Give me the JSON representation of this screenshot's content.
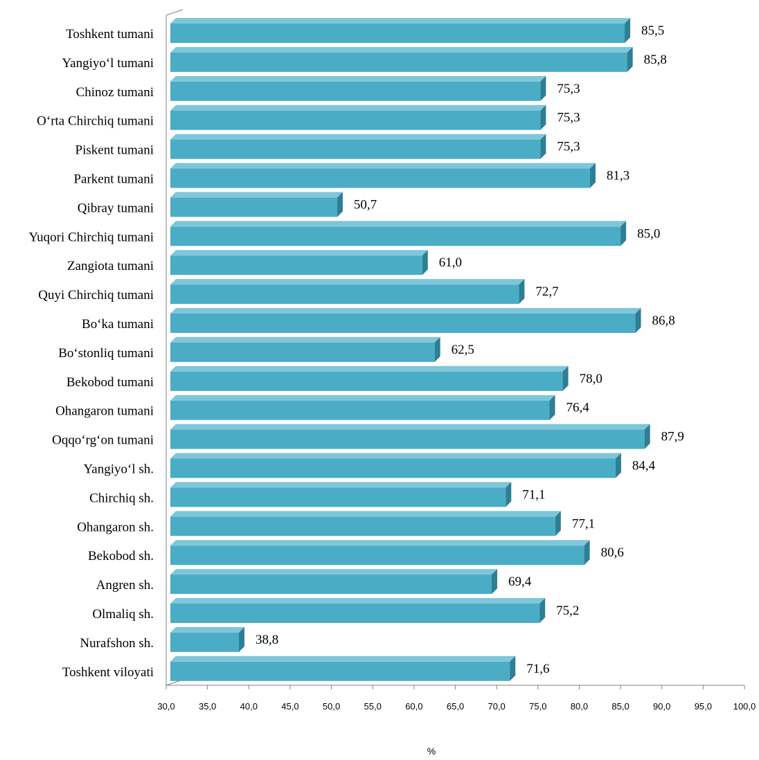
{
  "chart_data": {
    "type": "bar",
    "orientation": "horizontal",
    "categories": [
      "Toshkent tumani",
      "Yangiyo‘l tumani",
      "Chinoz tumani",
      "O‘rta Chirchiq tumani",
      "Piskent tumani",
      "Parkent tumani",
      "Qibray tumani",
      "Yuqori Chirchiq tumani",
      "Zangiota tumani",
      "Quyi Chirchiq tumani",
      "Bo‘ka tumani",
      "Bo‘stonliq tumani",
      "Bekobod tumani",
      "Ohangaron tumani",
      "Oqqo‘rg‘on tumani",
      "Yangiyo‘l sh.",
      "Chirchiq sh.",
      "Ohangaron sh.",
      "Bekobod sh.",
      "Angren sh.",
      "Olmaliq sh.",
      "Nurafshon sh.",
      "Toshkent viloyati"
    ],
    "values": [
      85.5,
      85.8,
      75.3,
      75.3,
      75.3,
      81.3,
      50.7,
      85.0,
      61.0,
      72.7,
      86.8,
      62.5,
      78.0,
      76.4,
      87.9,
      84.4,
      71.1,
      77.1,
      80.6,
      69.4,
      75.2,
      38.8,
      71.6
    ],
    "value_labels": [
      "85,5",
      "85,8",
      "75,3",
      "75,3",
      "75,3",
      "81,3",
      "50,7",
      "85,0",
      "61,0",
      "72,7",
      "86,8",
      "62,5",
      "78,0",
      "76,4",
      "87,9",
      "84,4",
      "71,1",
      "77,1",
      "80,6",
      "69,4",
      "75,2",
      "38,8",
      "71,6"
    ],
    "xlim": [
      30,
      100
    ],
    "x_ticks": [
      "30,0",
      "35,0",
      "40,0",
      "45,0",
      "50,0",
      "55,0",
      "60,0",
      "65,0",
      "70,0",
      "75,0",
      "80,0",
      "85,0",
      "90,0",
      "95,0",
      "100,0"
    ],
    "xlabel": "%",
    "ylabel": "",
    "title": "",
    "grid": false,
    "legend": "none",
    "colors": {
      "bar_front": "#4bacc6",
      "bar_top": "#7fc6d9",
      "bar_side": "#2c7f95",
      "axis": "#808080"
    }
  }
}
